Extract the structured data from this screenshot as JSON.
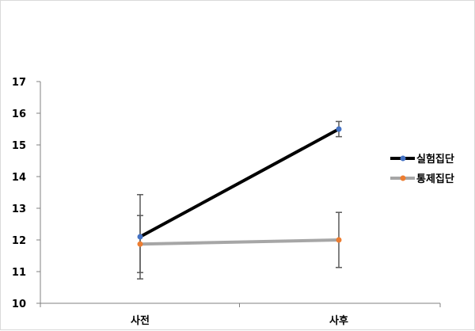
{
  "chart_data": {
    "type": "line",
    "categories": [
      "사전",
      "사후"
    ],
    "ylim": [
      10,
      17
    ],
    "yticks": [
      10,
      11,
      12,
      13,
      14,
      15,
      16,
      17
    ],
    "grid": false,
    "legend_position": "right",
    "series": [
      {
        "name": "실험집단",
        "values": [
          12.1,
          15.5
        ],
        "error": [
          1.33,
          0.24
        ],
        "line_color": "#000000",
        "marker_color": "#4472c4"
      },
      {
        "name": "통제집단",
        "values": [
          11.87,
          12.0
        ],
        "error": [
          0.9,
          0.87
        ],
        "line_color": "#a6a6a6",
        "marker_color": "#ed7d31"
      }
    ],
    "error_bar_color": "#595959",
    "axis_color": "#808080"
  }
}
